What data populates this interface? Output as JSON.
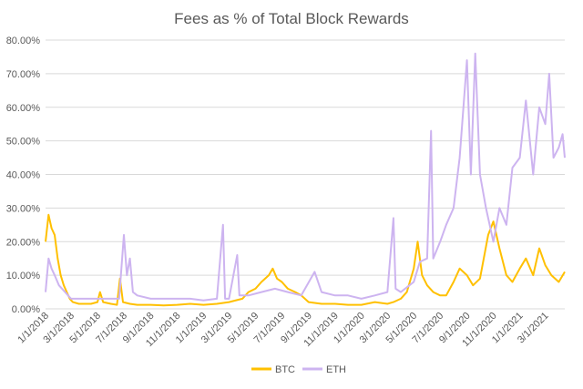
{
  "chart_data": {
    "type": "line",
    "title": "Fees as % of Total Block Rewards",
    "xlabel": "",
    "ylabel": "",
    "ylim": [
      0,
      0.8
    ],
    "y_ticks": [
      "0.00%",
      "10.00%",
      "20.00%",
      "30.00%",
      "40.00%",
      "50.00%",
      "60.00%",
      "70.00%",
      "80.00%"
    ],
    "x_ticks": [
      "1/1/2018",
      "3/1/2018",
      "5/1/2018",
      "7/1/2018",
      "9/1/2018",
      "11/1/2018",
      "1/1/2019",
      "3/1/2019",
      "5/1/2019",
      "7/1/2019",
      "9/1/2019",
      "11/1/2019",
      "1/1/2020",
      "3/1/2020",
      "5/1/2020",
      "7/1/2020",
      "9/1/2020",
      "11/1/2020",
      "1/1/2021",
      "3/1/2021"
    ],
    "x_range": [
      "2018-01-01",
      "2021-04-15"
    ],
    "grid": "horizontal",
    "legend_position": "bottom",
    "series": [
      {
        "name": "BTC",
        "color": "#FFC000",
        "points": [
          [
            "2018-01-01",
            0.2
          ],
          [
            "2018-01-08",
            0.28
          ],
          [
            "2018-01-15",
            0.24
          ],
          [
            "2018-01-22",
            0.22
          ],
          [
            "2018-01-29",
            0.15
          ],
          [
            "2018-02-05",
            0.1
          ],
          [
            "2018-02-12",
            0.07
          ],
          [
            "2018-02-19",
            0.05
          ],
          [
            "2018-02-26",
            0.03
          ],
          [
            "2018-03-05",
            0.02
          ],
          [
            "2018-03-19",
            0.015
          ],
          [
            "2018-04-02",
            0.015
          ],
          [
            "2018-04-16",
            0.015
          ],
          [
            "2018-05-01",
            0.02
          ],
          [
            "2018-05-07",
            0.05
          ],
          [
            "2018-05-14",
            0.02
          ],
          [
            "2018-06-01",
            0.015
          ],
          [
            "2018-06-15",
            0.012
          ],
          [
            "2018-06-22",
            0.09
          ],
          [
            "2018-06-29",
            0.02
          ],
          [
            "2018-07-15",
            0.015
          ],
          [
            "2018-08-01",
            0.012
          ],
          [
            "2018-09-01",
            0.012
          ],
          [
            "2018-10-01",
            0.01
          ],
          [
            "2018-11-01",
            0.012
          ],
          [
            "2018-12-01",
            0.015
          ],
          [
            "2019-01-01",
            0.012
          ],
          [
            "2019-02-01",
            0.015
          ],
          [
            "2019-03-01",
            0.02
          ],
          [
            "2019-04-01",
            0.03
          ],
          [
            "2019-04-15",
            0.05
          ],
          [
            "2019-05-01",
            0.06
          ],
          [
            "2019-05-15",
            0.08
          ],
          [
            "2019-06-01",
            0.1
          ],
          [
            "2019-06-10",
            0.12
          ],
          [
            "2019-06-20",
            0.09
          ],
          [
            "2019-07-01",
            0.08
          ],
          [
            "2019-07-15",
            0.06
          ],
          [
            "2019-08-01",
            0.05
          ],
          [
            "2019-08-15",
            0.04
          ],
          [
            "2019-09-01",
            0.02
          ],
          [
            "2019-10-01",
            0.015
          ],
          [
            "2019-11-01",
            0.015
          ],
          [
            "2019-12-01",
            0.012
          ],
          [
            "2020-01-01",
            0.012
          ],
          [
            "2020-02-01",
            0.02
          ],
          [
            "2020-03-01",
            0.015
          ],
          [
            "2020-03-15",
            0.02
          ],
          [
            "2020-04-01",
            0.03
          ],
          [
            "2020-04-15",
            0.05
          ],
          [
            "2020-05-01",
            0.12
          ],
          [
            "2020-05-10",
            0.2
          ],
          [
            "2020-05-20",
            0.1
          ],
          [
            "2020-06-01",
            0.07
          ],
          [
            "2020-06-15",
            0.05
          ],
          [
            "2020-07-01",
            0.04
          ],
          [
            "2020-07-15",
            0.04
          ],
          [
            "2020-08-01",
            0.08
          ],
          [
            "2020-08-15",
            0.12
          ],
          [
            "2020-09-01",
            0.1
          ],
          [
            "2020-09-15",
            0.07
          ],
          [
            "2020-10-01",
            0.09
          ],
          [
            "2020-10-20",
            0.22
          ],
          [
            "2020-11-01",
            0.26
          ],
          [
            "2020-11-15",
            0.18
          ],
          [
            "2020-12-01",
            0.1
          ],
          [
            "2020-12-15",
            0.08
          ],
          [
            "2021-01-01",
            0.12
          ],
          [
            "2021-01-15",
            0.15
          ],
          [
            "2021-02-01",
            0.1
          ],
          [
            "2021-02-15",
            0.18
          ],
          [
            "2021-03-01",
            0.13
          ],
          [
            "2021-03-15",
            0.1
          ],
          [
            "2021-04-01",
            0.08
          ],
          [
            "2021-04-15",
            0.11
          ]
        ]
      },
      {
        "name": "ETH",
        "color": "#CDB4F0",
        "points": [
          [
            "2018-01-01",
            0.05
          ],
          [
            "2018-01-08",
            0.15
          ],
          [
            "2018-01-15",
            0.12
          ],
          [
            "2018-01-22",
            0.1
          ],
          [
            "2018-02-01",
            0.07
          ],
          [
            "2018-02-15",
            0.05
          ],
          [
            "2018-03-01",
            0.03
          ],
          [
            "2018-04-01",
            0.03
          ],
          [
            "2018-05-01",
            0.03
          ],
          [
            "2018-06-01",
            0.03
          ],
          [
            "2018-06-20",
            0.03
          ],
          [
            "2018-07-01",
            0.22
          ],
          [
            "2018-07-08",
            0.1
          ],
          [
            "2018-07-15",
            0.15
          ],
          [
            "2018-07-22",
            0.05
          ],
          [
            "2018-08-01",
            0.04
          ],
          [
            "2018-09-01",
            0.03
          ],
          [
            "2018-10-01",
            0.03
          ],
          [
            "2018-11-01",
            0.03
          ],
          [
            "2018-12-01",
            0.03
          ],
          [
            "2019-01-01",
            0.025
          ],
          [
            "2019-02-01",
            0.03
          ],
          [
            "2019-02-15",
            0.25
          ],
          [
            "2019-02-20",
            0.03
          ],
          [
            "2019-03-01",
            0.03
          ],
          [
            "2019-03-20",
            0.16
          ],
          [
            "2019-03-25",
            0.04
          ],
          [
            "2019-04-15",
            0.04
          ],
          [
            "2019-05-15",
            0.05
          ],
          [
            "2019-06-15",
            0.06
          ],
          [
            "2019-07-15",
            0.05
          ],
          [
            "2019-08-15",
            0.04
          ],
          [
            "2019-09-15",
            0.11
          ],
          [
            "2019-10-01",
            0.05
          ],
          [
            "2019-11-01",
            0.04
          ],
          [
            "2019-12-01",
            0.04
          ],
          [
            "2020-01-01",
            0.03
          ],
          [
            "2020-02-01",
            0.04
          ],
          [
            "2020-03-01",
            0.05
          ],
          [
            "2020-03-15",
            0.27
          ],
          [
            "2020-03-20",
            0.06
          ],
          [
            "2020-04-01",
            0.05
          ],
          [
            "2020-05-01",
            0.08
          ],
          [
            "2020-05-15",
            0.14
          ],
          [
            "2020-06-01",
            0.15
          ],
          [
            "2020-06-10",
            0.53
          ],
          [
            "2020-06-15",
            0.15
          ],
          [
            "2020-07-01",
            0.2
          ],
          [
            "2020-07-15",
            0.25
          ],
          [
            "2020-08-01",
            0.3
          ],
          [
            "2020-08-15",
            0.45
          ],
          [
            "2020-09-01",
            0.74
          ],
          [
            "2020-09-10",
            0.4
          ],
          [
            "2020-09-20",
            0.76
          ],
          [
            "2020-10-01",
            0.4
          ],
          [
            "2020-10-15",
            0.3
          ],
          [
            "2020-11-01",
            0.2
          ],
          [
            "2020-11-15",
            0.3
          ],
          [
            "2020-12-01",
            0.25
          ],
          [
            "2020-12-15",
            0.42
          ],
          [
            "2021-01-01",
            0.45
          ],
          [
            "2021-01-15",
            0.62
          ],
          [
            "2021-02-01",
            0.4
          ],
          [
            "2021-02-15",
            0.6
          ],
          [
            "2021-03-01",
            0.55
          ],
          [
            "2021-03-10",
            0.7
          ],
          [
            "2021-03-20",
            0.45
          ],
          [
            "2021-04-01",
            0.48
          ],
          [
            "2021-04-10",
            0.52
          ],
          [
            "2021-04-15",
            0.45
          ]
        ]
      }
    ]
  }
}
